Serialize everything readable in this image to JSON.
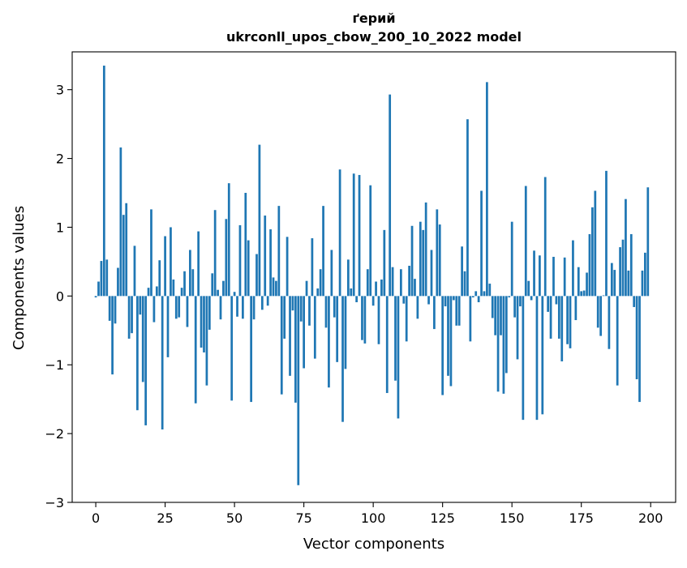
{
  "chart_data": {
    "type": "bar",
    "title_line1": "ґерий",
    "title_line2": "ukrconll_upos_cbow_200_10_2022 model",
    "xlabel": "Vector components",
    "ylabel": "Components values",
    "xlim": [
      -8.5,
      209.0
    ],
    "ylim": [
      -3.0,
      3.55
    ],
    "xticks": [
      0,
      25,
      50,
      75,
      100,
      125,
      150,
      175,
      200
    ],
    "yticks": [
      -3,
      -2,
      -1,
      0,
      1,
      2,
      3
    ],
    "ytick_labels": [
      "−3",
      "−2",
      "−1",
      "0",
      "1",
      "2",
      "3"
    ],
    "color": "#1f77b4",
    "grid": false,
    "values": [
      -0.02,
      0.21,
      0.51,
      3.35,
      0.53,
      -0.36,
      -1.14,
      -0.4,
      0.41,
      2.16,
      1.18,
      1.35,
      -0.62,
      -0.54,
      0.73,
      -1.66,
      -0.27,
      -1.25,
      -1.88,
      0.12,
      1.26,
      -0.38,
      0.14,
      0.52,
      -1.94,
      0.87,
      -0.89,
      1.0,
      0.24,
      -0.33,
      -0.31,
      0.12,
      0.36,
      -0.45,
      0.67,
      0.39,
      -1.56,
      0.94,
      -0.75,
      -0.82,
      -1.3,
      -0.49,
      0.33,
      1.25,
      0.09,
      -0.34,
      0.22,
      1.12,
      1.64,
      -1.52,
      0.06,
      -0.3,
      1.03,
      -0.33,
      1.5,
      0.81,
      -1.54,
      -0.34,
      0.61,
      2.2,
      -0.2,
      1.17,
      -0.14,
      0.97,
      0.27,
      0.22,
      1.31,
      -1.43,
      -0.62,
      0.86,
      -1.16,
      -0.21,
      -1.55,
      -2.75,
      -0.37,
      -1.05,
      0.22,
      -0.43,
      0.84,
      -0.91,
      0.11,
      0.39,
      1.31,
      -0.46,
      -1.33,
      0.67,
      -0.31,
      -0.96,
      1.84,
      -1.83,
      -1.06,
      0.53,
      0.11,
      1.78,
      -0.09,
      1.76,
      -0.64,
      -0.69,
      0.39,
      1.61,
      -0.14,
      0.21,
      -0.7,
      0.24,
      0.96,
      -1.41,
      2.93,
      0.42,
      -1.23,
      -1.78,
      0.39,
      -0.11,
      -0.66,
      0.44,
      1.02,
      0.25,
      -0.33,
      1.08,
      0.96,
      1.36,
      -0.12,
      0.67,
      -0.48,
      1.26,
      1.04,
      -1.44,
      -0.15,
      -1.16,
      -1.31,
      -0.06,
      -0.43,
      -0.43,
      0.72,
      0.36,
      2.57,
      -0.66,
      -0.02,
      0.07,
      -0.09,
      1.53,
      0.07,
      3.11,
      0.18,
      -0.32,
      -0.57,
      -1.39,
      -0.57,
      -1.42,
      -1.12,
      -0.02,
      1.08,
      -0.31,
      -0.92,
      -0.15,
      -1.8,
      1.6,
      0.22,
      -0.06,
      0.66,
      -1.8,
      0.59,
      -1.72,
      1.73,
      -0.23,
      -0.62,
      0.57,
      -0.12,
      -0.62,
      -0.95,
      0.56,
      -0.7,
      -0.76,
      0.81,
      -0.35,
      0.42,
      0.07,
      0.08,
      0.34,
      0.9,
      1.29,
      1.53,
      -0.46,
      -0.58,
      0.01,
      1.82,
      -0.77,
      0.48,
      0.38,
      -1.3,
      0.71,
      0.82,
      1.41,
      0.37,
      0.9,
      -0.16,
      -1.21,
      -1.54,
      0.37,
      0.63,
      1.58
    ]
  }
}
